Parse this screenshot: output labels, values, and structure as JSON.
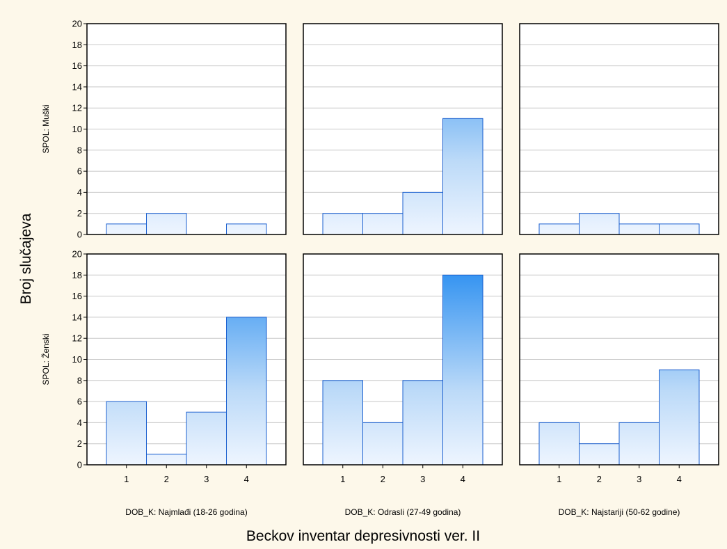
{
  "chart_data": {
    "type": "bar",
    "subtype": "histogram-grid",
    "xlabel": "Beckov inventar depresivnosti ver. II",
    "ylabel": "Broj slučajeva",
    "categories": [
      "1",
      "2",
      "3",
      "4"
    ],
    "ylim": [
      0,
      20
    ],
    "yticks": [
      "0",
      "2",
      "4",
      "6",
      "8",
      "10",
      "12",
      "14",
      "16",
      "18",
      "20"
    ],
    "grid": true,
    "rows": [
      {
        "label": "SPOL: Muški"
      },
      {
        "label": "SPOL: Ženski"
      }
    ],
    "columns": [
      {
        "label": "DOB_K: Najmlađi (18-26 godina)"
      },
      {
        "label": "DOB_K: Odrasli (27-49 godina)"
      },
      {
        "label": "DOB_K: Najstariji (50-62 godine)"
      }
    ],
    "panels": [
      {
        "row": 0,
        "col": 0,
        "values": [
          1,
          2,
          0,
          1
        ]
      },
      {
        "row": 0,
        "col": 1,
        "values": [
          2,
          2,
          4,
          11
        ]
      },
      {
        "row": 0,
        "col": 2,
        "values": [
          1,
          2,
          1,
          1
        ]
      },
      {
        "row": 1,
        "col": 0,
        "values": [
          6,
          1,
          5,
          14
        ]
      },
      {
        "row": 1,
        "col": 1,
        "values": [
          8,
          4,
          8,
          18
        ]
      },
      {
        "row": 1,
        "col": 2,
        "values": [
          4,
          2,
          4,
          9
        ]
      }
    ],
    "colors": {
      "background": "#fdf8ea",
      "bar_light": "#eef5ff",
      "bar_dark": "#1e88f0",
      "bar_stroke": "#1a5fcf",
      "grid": "#c8c8c8"
    }
  }
}
